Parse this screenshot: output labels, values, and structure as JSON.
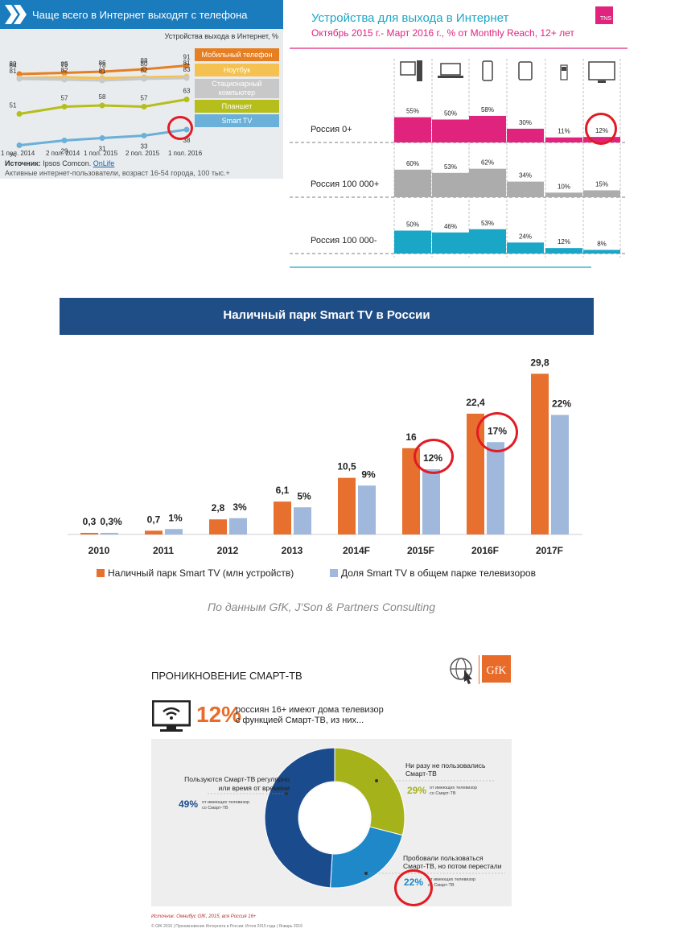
{
  "panel1": {
    "title": "Чаще всего в Интернет выходят с телефона",
    "unit_label": "Устройства выхода в Интернет, %",
    "source_label": "Источник:",
    "source_name": "Ipsos Comcon.",
    "source_link": "OnLife",
    "audience": "Активные интернет-пользователи, возраст 16-54 города, 100 тыс.+",
    "colors": {
      "header": "#1a7bbd",
      "mobile": "#e67e22",
      "laptop": "#f5c151",
      "desktop": "#c8c8c8",
      "tablet": "#b5be1a",
      "smarttv": "#6ab0d8"
    }
  },
  "panel2": {
    "title": "Устройства для выхода в Интернет",
    "subtitle": "Октябрь 2015 г.- Март 2016 г., % от Monthly Reach, 12+ лет",
    "logo": "TNS",
    "device_icons": [
      "desktop-icon",
      "laptop-icon",
      "smartphone-icon",
      "tablet-icon",
      "feature-phone-icon",
      "tv-icon"
    ]
  },
  "panel3": {
    "title": "Наличный парк Smart TV в России",
    "legend": [
      "Наличный парк Smart TV (млн устройств)",
      "Доля Smart TV в общем парке телевизоров"
    ],
    "source": "По данным GfK, J'Son & Partners Consulting"
  },
  "panel4": {
    "title": "ПРОНИКНОВЕНИЕ СМАРТ-ТВ",
    "big_pct": "12%",
    "desc_line1": "россиян 16+ имеют дома телевизор",
    "desc_line2": "с функцией Смарт-ТВ, из них...",
    "logo": "GfK",
    "left_label_1": "Пользуются Смарт-ТВ регулярно",
    "left_label_2": "или время от времени",
    "left_pct": "49%",
    "left_note_1": "от имеющих телевизор",
    "left_note_2": "со Смарт-ТВ",
    "tr_label_1": "Ни разу не пользовались",
    "tr_label_2": "Смарт-ТВ",
    "tr_pct": "29%",
    "tr_note_1": "от имеющих телевизор",
    "tr_note_2": "со Смарт-ТВ",
    "br_label_1": "Пробовали пользоваться",
    "br_label_2": "Смарт-ТВ, но потом перестали",
    "br_pct": "22%",
    "br_note_1": "от имеющих телевизор",
    "br_note_2": "со Смарт-ТВ",
    "source": "Источник: Омнибус GfK, 2015, вся Россия 16+",
    "copyright": "© GfK 2016 | Проникновение Интернета в России: Итоги 2015 года | Январь 2016"
  },
  "chart_data": [
    {
      "type": "line",
      "title": "Чаще всего в Интернет выходят с телефона",
      "ylabel": "Устройства выхода в Интернет, %",
      "categories": [
        "1 пол. 2014",
        "2 пол. 2014",
        "1 пол. 2015",
        "2 пол. 2015",
        "1 пол. 2016"
      ],
      "series": [
        {
          "name": "Мобильный телефон",
          "color": "#e67e22",
          "values": [
            84,
            85,
            86,
            88,
            91
          ]
        },
        {
          "name": "Ноутбук",
          "color": "#f5c151",
          "values": [
            81,
            82,
            81,
            82,
            83
          ]
        },
        {
          "name": "Стационарный компьютер",
          "color": "#c8c8c8",
          "values": [
            80,
            79,
            78,
            80,
            81
          ]
        },
        {
          "name": "Планшет",
          "color": "#b5be1a",
          "values": [
            51,
            57,
            58,
            57,
            63
          ]
        },
        {
          "name": "Smart TV",
          "color": "#6ab0d8",
          "values": [
            25,
            29,
            31,
            33,
            38
          ]
        }
      ],
      "legend": "right"
    },
    {
      "type": "bar",
      "title": "Устройства для выхода в Интернет",
      "categories": [
        "desktop",
        "laptop",
        "smartphone",
        "tablet",
        "feature phone",
        "TV"
      ],
      "series": [
        {
          "name": "Россия 0+",
          "color": "#e0247e",
          "values": [
            55,
            50,
            58,
            30,
            11,
            12
          ]
        },
        {
          "name": "Россия 100 000+",
          "color": "#acacac",
          "values": [
            60,
            53,
            62,
            34,
            10,
            15
          ]
        },
        {
          "name": "Россия 100 000-",
          "color": "#1aa6c6",
          "values": [
            50,
            46,
            53,
            24,
            12,
            8
          ]
        }
      ],
      "ylim": [
        0,
        100
      ]
    },
    {
      "type": "bar",
      "title": "Наличный парк Smart TV в России",
      "categories": [
        "2010",
        "2011",
        "2012",
        "2013",
        "2014F",
        "2015F",
        "2016F",
        "2017F"
      ],
      "series": [
        {
          "name": "Наличный парк Smart TV (млн устройств)",
          "color": "#e8702f",
          "values": [
            0.3,
            0.7,
            2.8,
            6.1,
            10.5,
            16,
            22.4,
            29.8
          ],
          "labels": [
            "0,3",
            "0,7",
            "2,8",
            "6,1",
            "10,5",
            "16",
            "22,4",
            "29,8"
          ]
        },
        {
          "name": "Доля Smart TV в общем парке телевизоров",
          "color": "#9fb8dc",
          "values": [
            0.3,
            1,
            3,
            5,
            9,
            12,
            17,
            22
          ],
          "labels": [
            "0,3%",
            "1%",
            "3%",
            "5%",
            "9%",
            "12%",
            "17%",
            "22%"
          ]
        }
      ],
      "legend": "bottom"
    },
    {
      "type": "pie",
      "title": "ПРОНИКНОВЕНИЕ СМАРТ-ТВ",
      "labels": [
        "Пользуются Смарт-ТВ регулярно или время от времени",
        "Ни разу не пользовались Смарт-ТВ",
        "Пробовали пользоваться Смарт-ТВ, но потом перестали"
      ],
      "values": [
        49,
        29,
        22
      ],
      "colors": [
        "#1a4b8c",
        "#a6b21a",
        "#1e88c8"
      ]
    }
  ]
}
